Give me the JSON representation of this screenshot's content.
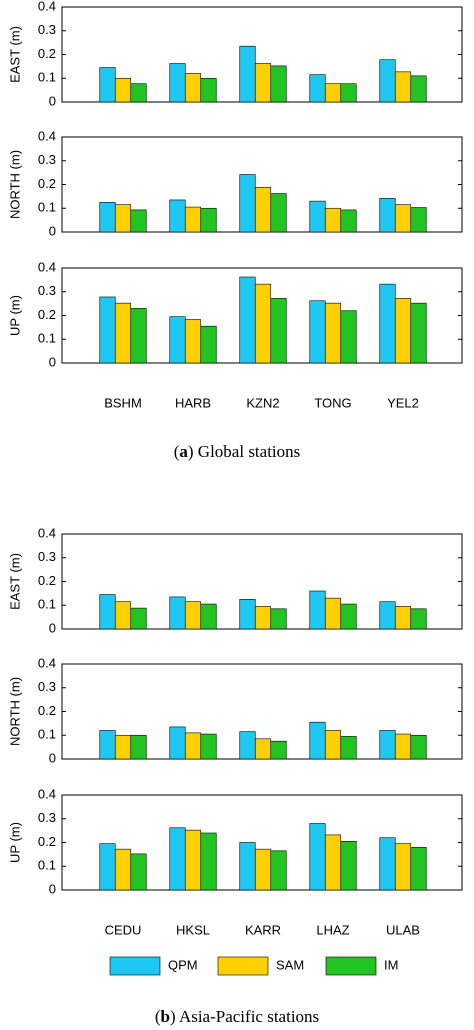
{
  "chart_data": [
    {
      "type": "bar",
      "ylabel": "EAST (m)",
      "ylim": [
        0,
        0.4
      ],
      "yticks": [
        0,
        0.1,
        0.2,
        0.3,
        0.4
      ],
      "series": [
        {
          "color": "#1ec8f2",
          "values": [
            0.145,
            0.162,
            0.235,
            0.115,
            0.178
          ]
        },
        {
          "color": "#ffd000",
          "values": [
            0.1,
            0.12,
            0.162,
            0.077,
            0.127
          ]
        },
        {
          "color": "#22c322",
          "values": [
            0.077,
            0.1,
            0.152,
            0.077,
            0.11
          ]
        }
      ]
    },
    {
      "type": "bar",
      "ylabel": "NORTH (m)",
      "ylim": [
        0,
        0.4
      ],
      "yticks": [
        0,
        0.1,
        0.2,
        0.3,
        0.4
      ],
      "series": [
        {
          "color": "#1ec8f2",
          "values": [
            0.125,
            0.135,
            0.242,
            0.13,
            0.142
          ]
        },
        {
          "color": "#ffd000",
          "values": [
            0.115,
            0.105,
            0.188,
            0.1,
            0.115
          ]
        },
        {
          "color": "#22c322",
          "values": [
            0.093,
            0.1,
            0.162,
            0.093,
            0.103
          ]
        }
      ]
    },
    {
      "type": "bar",
      "ylabel": "UP (m)",
      "ylim": [
        0,
        0.4
      ],
      "yticks": [
        0,
        0.1,
        0.2,
        0.3,
        0.4
      ],
      "categories": [
        "BSHM",
        "HARB",
        "KZN2",
        "TONG",
        "YEL2"
      ],
      "caption": [
        "(",
        "a",
        ") Global stations"
      ],
      "series": [
        {
          "color": "#1ec8f2",
          "values": [
            0.278,
            0.195,
            0.362,
            0.262,
            0.332
          ]
        },
        {
          "color": "#ffd000",
          "values": [
            0.252,
            0.183,
            0.332,
            0.252,
            0.272
          ]
        },
        {
          "color": "#22c322",
          "values": [
            0.23,
            0.155,
            0.272,
            0.22,
            0.252
          ]
        }
      ]
    },
    {
      "type": "bar",
      "ylabel": "EAST (m)",
      "ylim": [
        0,
        0.4
      ],
      "yticks": [
        0,
        0.1,
        0.2,
        0.3,
        0.4
      ],
      "series": [
        {
          "color": "#1ec8f2",
          "values": [
            0.145,
            0.135,
            0.125,
            0.16,
            0.115
          ]
        },
        {
          "color": "#ffd000",
          "values": [
            0.115,
            0.115,
            0.095,
            0.13,
            0.095
          ]
        },
        {
          "color": "#22c322",
          "values": [
            0.088,
            0.105,
            0.085,
            0.105,
            0.085
          ]
        }
      ]
    },
    {
      "type": "bar",
      "ylabel": "NORTH (m)",
      "ylim": [
        0,
        0.4
      ],
      "yticks": [
        0,
        0.1,
        0.2,
        0.3,
        0.4
      ],
      "series": [
        {
          "color": "#1ec8f2",
          "values": [
            0.12,
            0.135,
            0.115,
            0.155,
            0.12
          ]
        },
        {
          "color": "#ffd000",
          "values": [
            0.1,
            0.11,
            0.085,
            0.12,
            0.105
          ]
        },
        {
          "color": "#22c322",
          "values": [
            0.1,
            0.105,
            0.075,
            0.095,
            0.1
          ]
        }
      ]
    },
    {
      "type": "bar",
      "ylabel": "UP (m)",
      "ylim": [
        0,
        0.4
      ],
      "yticks": [
        0,
        0.1,
        0.2,
        0.3,
        0.4
      ],
      "categories": [
        "CEDU",
        "HKSL",
        "KARR",
        "LHAZ",
        "ULAB"
      ],
      "caption": [
        "(",
        "b",
        ") Asia-Pacific stations"
      ],
      "series": [
        {
          "name": "QPM",
          "color": "#1ec8f2",
          "values": [
            0.195,
            0.262,
            0.2,
            0.28,
            0.22
          ]
        },
        {
          "name": "SAM",
          "color": "#ffd000",
          "values": [
            0.172,
            0.252,
            0.172,
            0.232,
            0.195
          ]
        },
        {
          "name": "IM",
          "color": "#22c322",
          "values": [
            0.152,
            0.24,
            0.165,
            0.205,
            0.18
          ]
        }
      ]
    }
  ]
}
